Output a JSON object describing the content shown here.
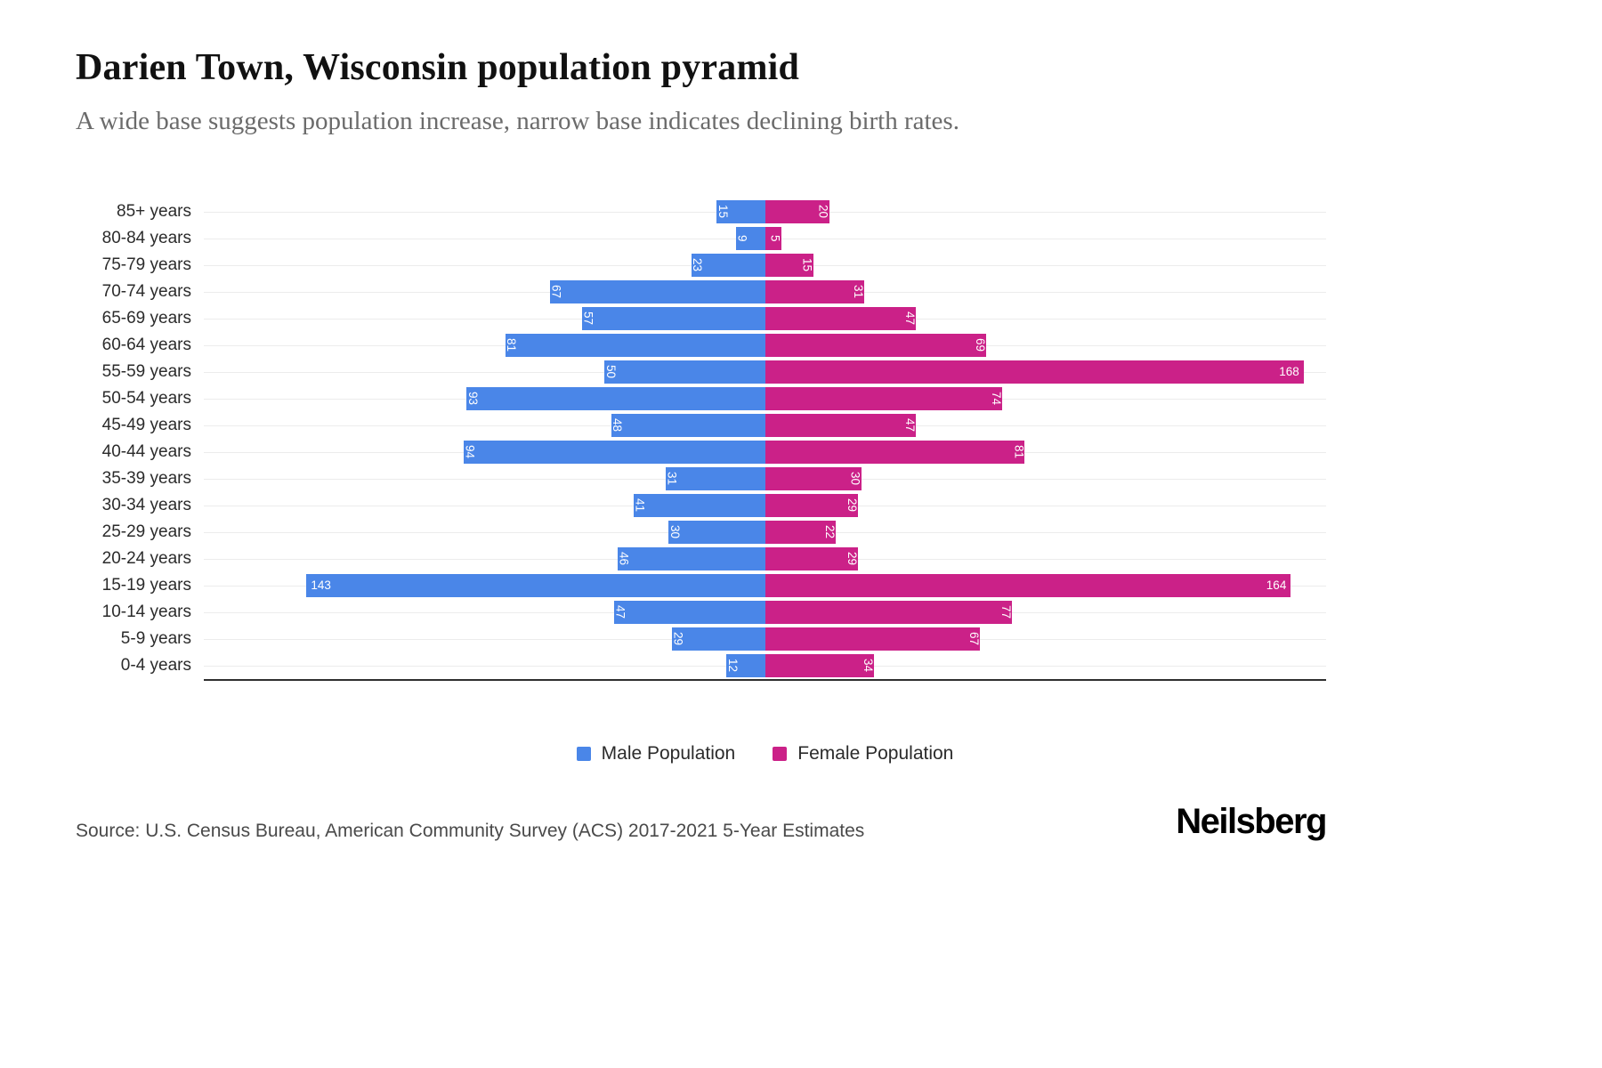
{
  "header": {
    "title": "Darien Town, Wisconsin population pyramid",
    "subtitle": "A wide base suggests population increase, narrow base indicates declining birth rates."
  },
  "chart_data": {
    "type": "bar",
    "subtype": "population-pyramid",
    "orientation": "horizontal",
    "categories": [
      "85+ years",
      "80-84 years",
      "75-79 years",
      "70-74 years",
      "65-69 years",
      "60-64 years",
      "55-59 years",
      "50-54 years",
      "45-49 years",
      "40-44 years",
      "35-39 years",
      "30-34 years",
      "25-29 years",
      "20-24 years",
      "15-19 years",
      "10-14 years",
      "5-9 years",
      "0-4 years"
    ],
    "series": [
      {
        "name": "Male Population",
        "side": "left",
        "color": "#4a86e8",
        "values": [
          15,
          9,
          23,
          67,
          57,
          81,
          50,
          93,
          48,
          94,
          31,
          41,
          30,
          46,
          143,
          47,
          29,
          12
        ]
      },
      {
        "name": "Female Population",
        "side": "right",
        "color": "#cb2188",
        "values": [
          20,
          5,
          15,
          31,
          47,
          69,
          168,
          74,
          47,
          81,
          30,
          29,
          22,
          29,
          164,
          77,
          67,
          34
        ]
      }
    ],
    "axis_max": 175,
    "grid": true,
    "value_labels": "inside-end",
    "legend_position": "bottom"
  },
  "legend": {
    "items": [
      {
        "label": "Male Population",
        "color": "#4a86e8"
      },
      {
        "label": "Female Population",
        "color": "#cb2188"
      }
    ]
  },
  "footer": {
    "source": "Source: U.S. Census Bureau, American Community Survey (ACS) 2017-2021 5-Year Estimates",
    "brand": "Neilsberg"
  }
}
